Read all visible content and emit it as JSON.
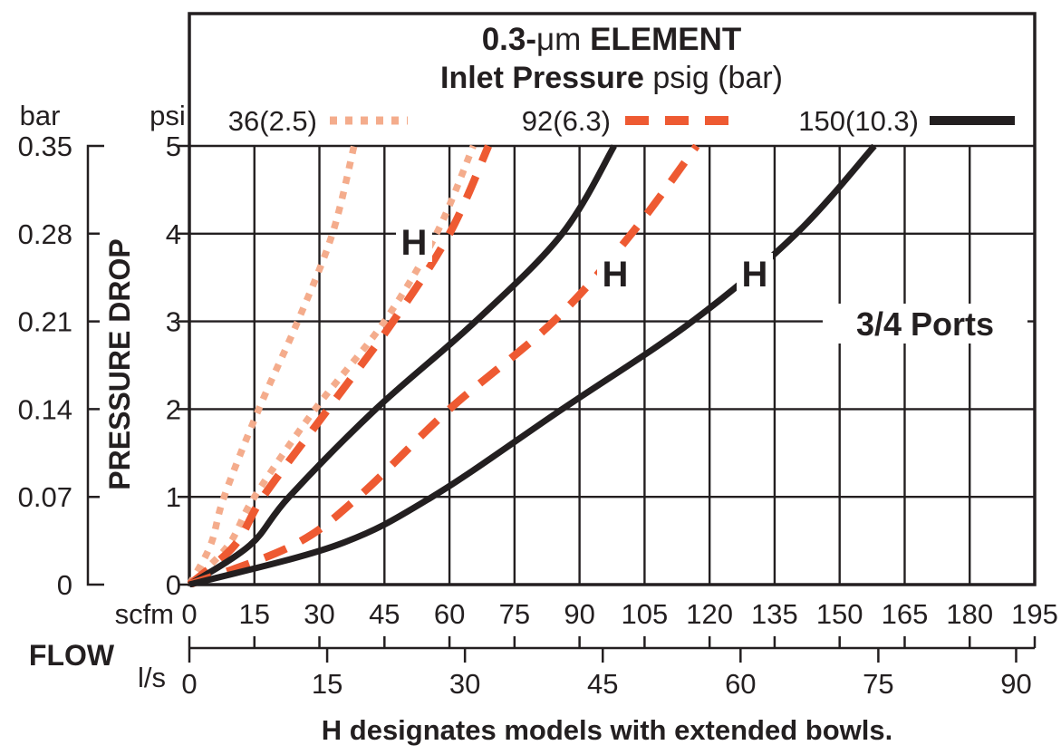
{
  "header": {
    "title_bold1": "0.3-",
    "title_mu": "μm",
    "title_bold2": " ELEMENT",
    "subtitle_bold": "Inlet Pressure",
    "subtitle_regular": " psig (bar)"
  },
  "legend": {
    "items": [
      {
        "label": "36(2.5)",
        "style": "dotted",
        "color": "#F4AC8C"
      },
      {
        "label": "92(6.3)",
        "style": "dashed",
        "color": "#EE5A32"
      },
      {
        "label": "150(10.3)",
        "style": "solid",
        "color": "#231F20"
      }
    ]
  },
  "y_axis": {
    "left_unit": "bar",
    "right_unit": "psi",
    "label": "PRESSURE DROP",
    "bar_ticks": [
      "0.35",
      "0.28",
      "0.21",
      "0.14",
      "0.07",
      "0"
    ],
    "psi_ticks": [
      "5",
      "4",
      "3",
      "2",
      "1",
      "0"
    ]
  },
  "x_axis": {
    "label": "FLOW",
    "scfm_unit": "scfm",
    "ls_unit": "l/s",
    "scfm_ticks": [
      "0",
      "15",
      "30",
      "45",
      "60",
      "75",
      "90",
      "105",
      "120",
      "135",
      "150",
      "165",
      "180",
      "195"
    ],
    "ls_ticks": [
      "0",
      "15",
      "30",
      "45",
      "60",
      "75",
      "90"
    ]
  },
  "annotations": {
    "h_label": "H",
    "ports_label": "3/4 Ports"
  },
  "caption": "H designates models with extended bowls.",
  "chart_data": {
    "type": "line",
    "title": "0.3-μm ELEMENT — Inlet Pressure psig (bar)",
    "xlabel": "FLOW (scfm, l/s)",
    "ylabel": "PRESSURE DROP (psi, bar)",
    "xlim_scfm": [
      0,
      195
    ],
    "ylim_psi": [
      0,
      5
    ],
    "ls_to_scfm": 2.119,
    "grid": true,
    "legend_position": "top",
    "series": [
      {
        "key": "p36_std",
        "name": "36 psig (2.5 bar) standard",
        "style": "dotted",
        "color": "#F4AC8C",
        "points_flow_psi": [
          [
            0,
            0
          ],
          [
            4.9,
            0.45
          ],
          [
            8,
            1
          ],
          [
            16,
            2
          ],
          [
            25,
            3
          ],
          [
            33,
            4
          ],
          [
            38,
            5
          ]
        ]
      },
      {
        "key": "p36_H",
        "name": "36 psig (2.5 bar) H extended bowl",
        "style": "dotted",
        "color": "#F4AC8C",
        "points_flow_psi": [
          [
            0,
            0
          ],
          [
            9,
            0.45
          ],
          [
            15,
            1
          ],
          [
            29,
            2
          ],
          [
            45,
            3
          ],
          [
            57,
            4
          ],
          [
            65.5,
            5
          ]
        ]
      },
      {
        "key": "p92_std",
        "name": "92 psig (6.3 bar) standard",
        "style": "dashed",
        "color": "#EE5A32",
        "points_flow_psi": [
          [
            0,
            0
          ],
          [
            10.5,
            0.45
          ],
          [
            17,
            1
          ],
          [
            32,
            2
          ],
          [
            47,
            3
          ],
          [
            60,
            4
          ],
          [
            69,
            5
          ]
        ]
      },
      {
        "key": "p150_std",
        "name": "150 psig (10.3 bar) standard",
        "style": "solid",
        "color": "#231F20",
        "points_flow_psi": [
          [
            0,
            0
          ],
          [
            14,
            0.45
          ],
          [
            23,
            1
          ],
          [
            43,
            2
          ],
          [
            66,
            3
          ],
          [
            86,
            4
          ],
          [
            98,
            5
          ]
        ]
      },
      {
        "key": "p92_H",
        "name": "92 psig (6.3 bar) H extended bowl",
        "style": "dashed",
        "color": "#EE5A32",
        "points_flow_psi": [
          [
            0,
            0
          ],
          [
            24,
            0.45
          ],
          [
            39,
            1
          ],
          [
            60,
            2
          ],
          [
            84,
            3
          ],
          [
            102,
            4
          ],
          [
            117,
            5
          ]
        ]
      },
      {
        "key": "p150_H",
        "name": "150 psig (10.3 bar) H extended bowl",
        "style": "solid",
        "color": "#231F20",
        "points_flow_psi": [
          [
            0,
            0
          ],
          [
            34,
            0.45
          ],
          [
            56,
            1
          ],
          [
            86,
            2
          ],
          [
            116,
            3
          ],
          [
            140,
            4
          ],
          [
            158,
            5
          ]
        ]
      }
    ]
  }
}
